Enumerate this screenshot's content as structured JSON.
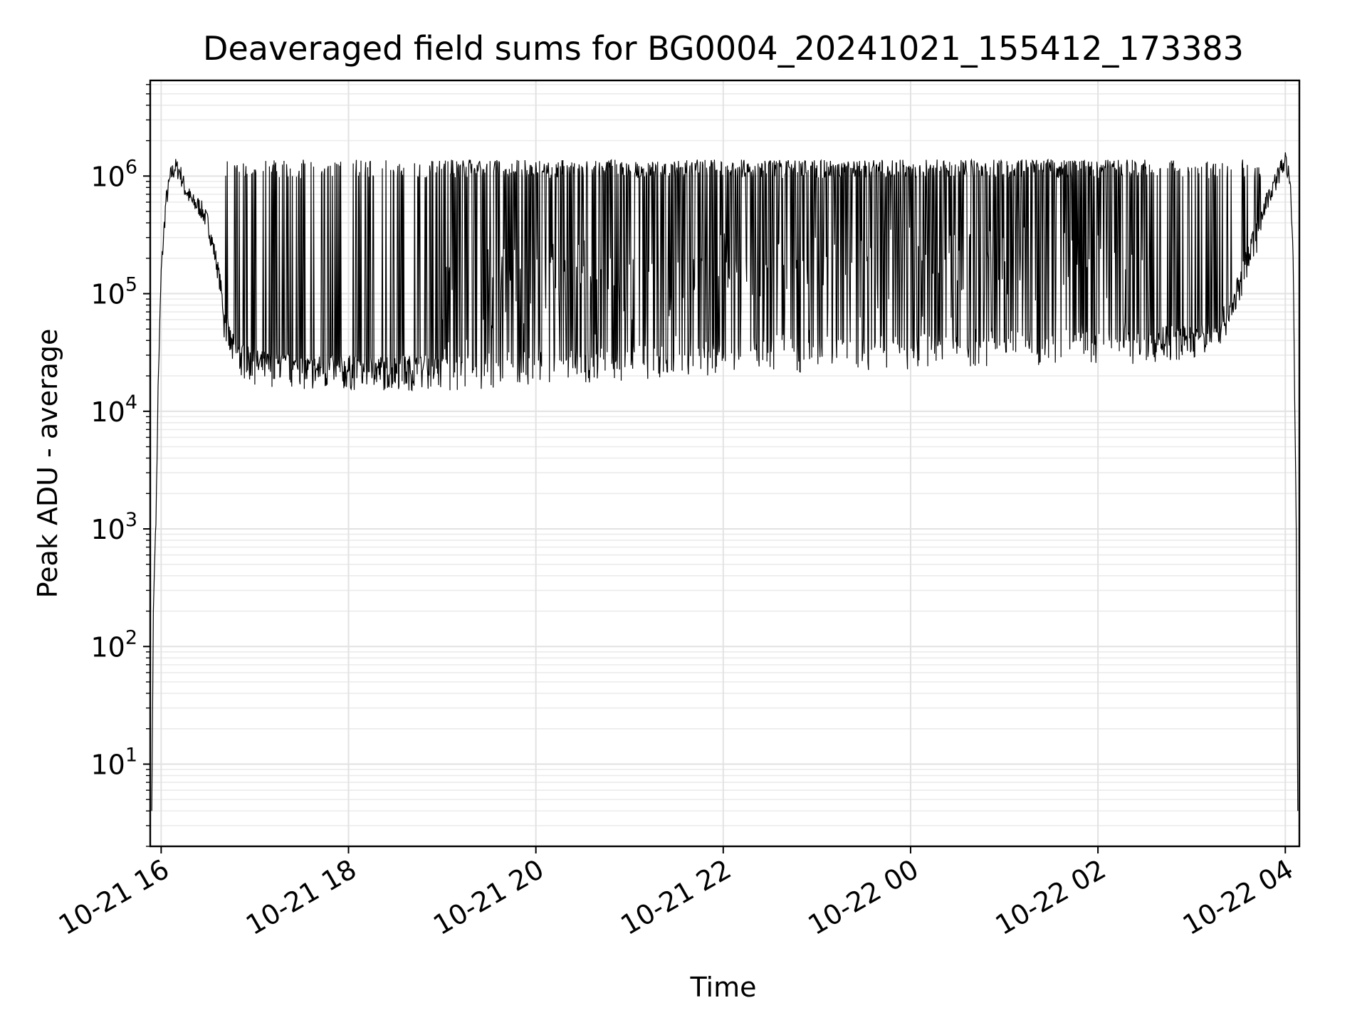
{
  "chart_data": {
    "type": "line",
    "title": "Deaveraged field sums for BG0004_20241021_155412_173383",
    "xlabel": "Time",
    "ylabel": "Peak ADU - average",
    "yscale": "log",
    "ylim": [
      2,
      6500000
    ],
    "xlim": [
      "2024-10-21T15:53",
      "2024-10-22T04:09"
    ],
    "grid": "on (major and minor)",
    "line_color": "#000000",
    "x_ticks": [
      {
        "value": "2024-10-21T16:00",
        "label": "10-21 16"
      },
      {
        "value": "2024-10-21T18:00",
        "label": "10-21 18"
      },
      {
        "value": "2024-10-21T20:00",
        "label": "10-21 20"
      },
      {
        "value": "2024-10-21T22:00",
        "label": "10-21 22"
      },
      {
        "value": "2024-10-22T00:00",
        "label": "10-22 00"
      },
      {
        "value": "2024-10-22T02:00",
        "label": "10-22 02"
      },
      {
        "value": "2024-10-22T04:00",
        "label": "10-22 04"
      }
    ],
    "y_ticks": [
      {
        "value": 10,
        "base": "10",
        "exp": "1"
      },
      {
        "value": 100,
        "base": "10",
        "exp": "2"
      },
      {
        "value": 1000,
        "base": "10",
        "exp": "3"
      },
      {
        "value": 10000,
        "base": "10",
        "exp": "4"
      },
      {
        "value": 100000,
        "base": "10",
        "exp": "5"
      },
      {
        "value": 1000000,
        "base": "10",
        "exp": "6"
      }
    ],
    "series": [
      {
        "points": [
          [
            "2024-10-21T15:54",
            4
          ],
          [
            "2024-10-21T15:55",
            200
          ],
          [
            "2024-10-21T15:57",
            2000
          ],
          [
            "2024-10-21T15:58",
            15000
          ],
          [
            "2024-10-21T16:00",
            150000
          ],
          [
            "2024-10-21T16:03",
            600000
          ],
          [
            "2024-10-21T16:06",
            1000000
          ],
          [
            "2024-10-21T16:09",
            1200000
          ],
          [
            "2024-10-21T16:12",
            1100000
          ],
          [
            "2024-10-21T16:15",
            800000
          ],
          [
            "2024-10-21T16:20",
            600000
          ],
          [
            "2024-10-21T16:25",
            550000
          ],
          [
            "2024-10-21T16:30",
            400000
          ],
          [
            "2024-10-21T16:35",
            200000
          ],
          [
            "2024-10-21T16:38",
            120000
          ],
          [
            "2024-10-21T16:40",
            70000
          ],
          [
            "2024-10-21T16:45",
            40000
          ],
          [
            "2024-10-21T16:50",
            32000
          ],
          [
            "2024-10-21T17:00",
            28000
          ],
          [
            "2024-10-21T17:30",
            25000
          ],
          [
            "2024-10-21T18:00",
            25000
          ],
          [
            "2024-10-21T19:00",
            25000
          ],
          [
            "2024-10-21T20:00",
            27000
          ],
          [
            "2024-10-21T21:00",
            30000
          ],
          [
            "2024-10-21T22:00",
            33000
          ],
          [
            "2024-10-21T23:00",
            36000
          ],
          [
            "2024-10-22T00:00",
            38000
          ],
          [
            "2024-10-22T01:00",
            40000
          ],
          [
            "2024-10-22T02:00",
            42000
          ],
          [
            "2024-10-22T02:35",
            42000
          ],
          [
            "2024-10-22T02:45",
            45000
          ],
          [
            "2024-10-22T03:00",
            45000
          ],
          [
            "2024-10-22T03:15",
            50000
          ],
          [
            "2024-10-22T03:25",
            80000
          ],
          [
            "2024-10-22T03:35",
            200000
          ],
          [
            "2024-10-22T03:45",
            500000
          ],
          [
            "2024-10-22T03:55",
            1000000
          ],
          [
            "2024-10-22T04:00",
            1400000
          ],
          [
            "2024-10-22T04:03",
            900000
          ],
          [
            "2024-10-22T04:05",
            200000
          ],
          [
            "2024-10-22T04:07",
            1000
          ],
          [
            "2024-10-22T04:08",
            4
          ]
        ],
        "spikes_to_approx": 1200000,
        "dips_to_approx": 20000
      }
    ]
  }
}
